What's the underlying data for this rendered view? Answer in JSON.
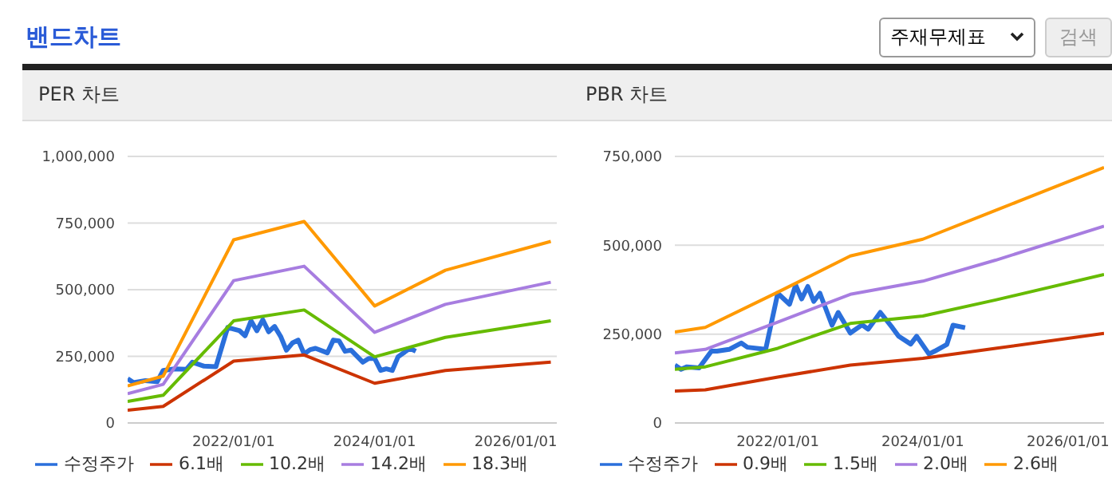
{
  "chart_data": [
    {
      "type": "other",
      "title": "밴드차트",
      "annotations": [
        "주재무제표",
        "검색"
      ]
    },
    {
      "type": "line",
      "title": "PER 차트",
      "xlim": [
        "2020-07-01",
        "2026-08-01"
      ],
      "xticks": [
        {
          "value": "2022-01-01",
          "label": "2022/01/01"
        },
        {
          "value": "2024-01-01",
          "label": "2024/01/01"
        },
        {
          "value": "2026-01-01",
          "label": "2026/01/01"
        }
      ],
      "ylim": [
        0,
        1000000
      ],
      "yticks": [
        0,
        {
          "value": 250000,
          "label": "250,000"
        },
        {
          "value": 500000,
          "label": "500,000"
        },
        {
          "value": 750000,
          "label": "750,000"
        },
        {
          "value": 1000000,
          "label": "1,000,000"
        }
      ],
      "grid": "y",
      "legend": "bottom",
      "marker": "none",
      "line_style": "solid",
      "series": [
        {
          "name": "수정주가",
          "color": "#2a6fdb",
          "x": [
            "2020-07",
            "2020-08",
            "2020-10",
            "2020-12",
            "2021-01",
            "2021-03",
            "2021-05",
            "2021-06",
            "2021-08",
            "2021-10",
            "2021-12",
            "2022-02",
            "2022-03",
            "2022-04",
            "2022-05",
            "2022-06",
            "2022-07",
            "2022-08",
            "2022-09",
            "2022-10",
            "2022-11",
            "2022-12",
            "2023-01",
            "2023-02",
            "2023-03",
            "2023-05",
            "2023-06",
            "2023-07",
            "2023-08",
            "2023-09",
            "2023-11",
            "2023-12",
            "2024-01",
            "2024-02",
            "2024-03",
            "2024-04",
            "2024-05",
            "2024-07",
            "2024-08"
          ],
          "values": [
            166000,
            151000,
            159000,
            155000,
            197000,
            203000,
            201000,
            228000,
            213000,
            211000,
            358000,
            346000,
            327000,
            383000,
            346000,
            387000,
            342000,
            362000,
            325000,
            273000,
            300000,
            311000,
            259000,
            275000,
            280000,
            263000,
            311000,
            308000,
            269000,
            273000,
            228000,
            242000,
            242000,
            197000,
            203000,
            197000,
            248000,
            280000,
            269000
          ]
        },
        {
          "name": "6.1배",
          "color": "#cc3300",
          "x": [
            "2020-07",
            "2021-01",
            "2022-01",
            "2023-01",
            "2024-01",
            "2025-01",
            "2026-07"
          ],
          "values": [
            48000,
            62000,
            232000,
            255000,
            149000,
            197000,
            228000
          ]
        },
        {
          "name": "10.2배",
          "color": "#66bb00",
          "x": [
            "2020-07",
            "2021-01",
            "2022-01",
            "2023-01",
            "2024-01",
            "2025-01",
            "2026-07"
          ],
          "values": [
            81000,
            104000,
            383000,
            424000,
            248000,
            321000,
            383000
          ]
        },
        {
          "name": "14.2배",
          "color": "#a77de0",
          "x": [
            "2020-07",
            "2021-01",
            "2022-01",
            "2023-01",
            "2024-01",
            "2025-01",
            "2026-07"
          ],
          "values": [
            110000,
            145000,
            534000,
            588000,
            340000,
            445000,
            528000
          ]
        },
        {
          "name": "18.3배",
          "color": "#ff9900",
          "x": [
            "2020-07",
            "2021-01",
            "2022-01",
            "2023-01",
            "2024-01",
            "2025-01",
            "2026-07"
          ],
          "values": [
            139000,
            176000,
            687000,
            756000,
            439000,
            573000,
            681000
          ]
        }
      ]
    },
    {
      "type": "line",
      "title": "PBR 차트",
      "xlim": [
        "2020-08-01",
        "2026-07-01"
      ],
      "xticks": [
        {
          "value": "2022-01-01",
          "label": "2022/01/01"
        },
        {
          "value": "2024-01-01",
          "label": "2024/01/01"
        },
        {
          "value": "2026-01-01",
          "label": "2026/01/01"
        }
      ],
      "ylim": [
        0,
        750000
      ],
      "yticks": [
        0,
        {
          "value": 250000,
          "label": "250,000"
        },
        {
          "value": 500000,
          "label": "500,000"
        },
        {
          "value": 750000,
          "label": "750,000"
        }
      ],
      "grid": "y",
      "legend": "bottom",
      "marker": "none",
      "line_style": "solid",
      "series": [
        {
          "name": "수정주가",
          "color": "#2a6fdb",
          "x": [
            "2020-08",
            "2020-09",
            "2020-10",
            "2020-12",
            "2021-02",
            "2021-03",
            "2021-05",
            "2021-07",
            "2021-08",
            "2021-11",
            "2022-01",
            "2022-03",
            "2022-04",
            "2022-05",
            "2022-06",
            "2022-07",
            "2022-08",
            "2022-10",
            "2022-11",
            "2023-01",
            "2023-03",
            "2023-04",
            "2023-06",
            "2023-08",
            "2023-09",
            "2023-11",
            "2023-12",
            "2024-02",
            "2024-03",
            "2024-05",
            "2024-06",
            "2024-08"
          ],
          "values": [
            163000,
            151000,
            158000,
            155000,
            202000,
            202000,
            207000,
            225000,
            213000,
            207000,
            365000,
            334000,
            388000,
            349000,
            384000,
            342000,
            365000,
            275000,
            311000,
            253000,
            276000,
            264000,
            311000,
            268000,
            244000,
            222000,
            244000,
            194000,
            202000,
            221000,
            275000,
            268000
          ]
        },
        {
          "name": "0.9배",
          "color": "#cc3300",
          "x": [
            "2020-08",
            "2021-01",
            "2022-01",
            "2023-01",
            "2024-01",
            "2025-01",
            "2026-07"
          ],
          "values": [
            90000,
            93000,
            129000,
            163000,
            182000,
            210000,
            252000
          ]
        },
        {
          "name": "1.5배",
          "color": "#66bb00",
          "x": [
            "2020-08",
            "2021-01",
            "2022-01",
            "2023-01",
            "2024-01",
            "2025-01",
            "2026-07"
          ],
          "values": [
            151000,
            158000,
            210000,
            280000,
            301000,
            346000,
            418000
          ]
        },
        {
          "name": "2.0배",
          "color": "#a77de0",
          "x": [
            "2020-08",
            "2021-01",
            "2022-01",
            "2023-01",
            "2024-01",
            "2025-01",
            "2026-07"
          ],
          "values": [
            197000,
            207000,
            284000,
            362000,
            399000,
            458000,
            554000
          ]
        },
        {
          "name": "2.6배",
          "color": "#ff9900",
          "x": [
            "2020-08",
            "2021-01",
            "2022-01",
            "2023-01",
            "2024-01",
            "2025-01",
            "2026-07"
          ],
          "values": [
            256000,
            269000,
            368000,
            470000,
            517000,
            598000,
            719000
          ]
        }
      ]
    }
  ]
}
